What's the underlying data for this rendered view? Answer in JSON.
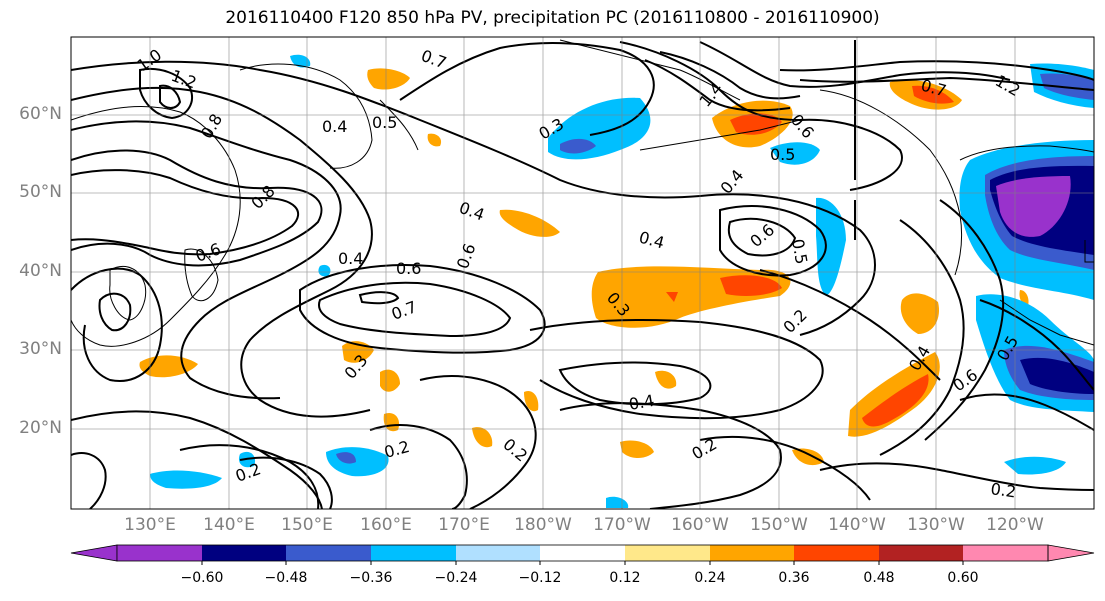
{
  "title": "2016110400 F120 850 hPa PV, precipitation PC (2016110800 - 2016110900)",
  "lat_labels": [
    "60°N",
    "50°N",
    "40°N",
    "30°N",
    "20°N"
  ],
  "lon_labels": [
    "130°E",
    "140°E",
    "150°E",
    "160°E",
    "170°E",
    "180°W",
    "170°W",
    "160°W",
    "150°W",
    "140°W",
    "130°W",
    "120°W"
  ],
  "colorbar": {
    "ticks": [
      "−0.60",
      "−0.48",
      "−0.36",
      "−0.24",
      "−0.12",
      "0.12",
      "0.24",
      "0.36",
      "0.48",
      "0.60"
    ],
    "colors": [
      "#9932cc",
      "#000080",
      "#3a5bcd",
      "#00bfff",
      "#b0e0ff",
      "#ffffff",
      "#ffe88a",
      "#ffa500",
      "#ff4500",
      "#b22222",
      "#ff88b0"
    ]
  },
  "contour_labels": [
    "1.0",
    "1.2",
    "0.4",
    "0.5",
    "0.7",
    "0.3",
    "1.4",
    "0.6",
    "0.5",
    "0.4",
    "0.6",
    "0.5",
    "0.4",
    "0.4",
    "0.6",
    "0.7",
    "0.6",
    "0.3",
    "0.4",
    "0.2",
    "0.2",
    "0.2",
    "0.2",
    "0.4",
    "0.5",
    "0.6",
    "0.2",
    "0.3",
    "0.2",
    "1.2",
    "0.8",
    "0.6",
    "0.8",
    "0.7",
    "0.4"
  ]
}
